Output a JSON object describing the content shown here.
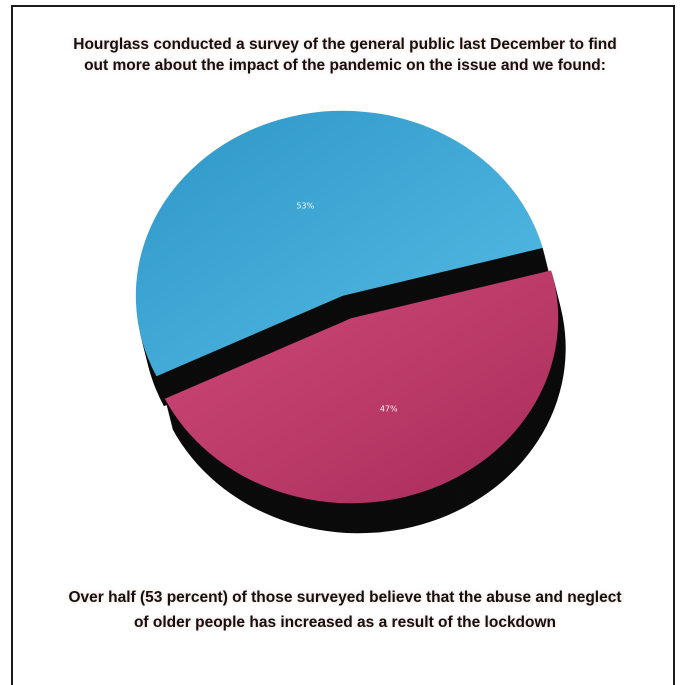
{
  "heading": {
    "line1": "Hourglass conducted a survey of the general public last December to find",
    "line2": "out more about the impact of the pandemic on the issue and we found:"
  },
  "caption": {
    "line1": "Over half (53 percent) of those surveyed believe that the abuse and neglect",
    "line2": "of older people has increased as a result of the lockdown"
  },
  "chart_data": {
    "type": "pie",
    "title": "",
    "slices": [
      {
        "label": "53%",
        "value": 53,
        "color": "#3aa6d4"
      },
      {
        "label": "47%",
        "value": 47,
        "color": "#c73d6e"
      }
    ]
  },
  "colors": {
    "blue_slice": "#3aa6d4",
    "pink_slice": "#c73d6e",
    "shadow": "#0b0b0b",
    "frame": "#1a1a1a"
  }
}
